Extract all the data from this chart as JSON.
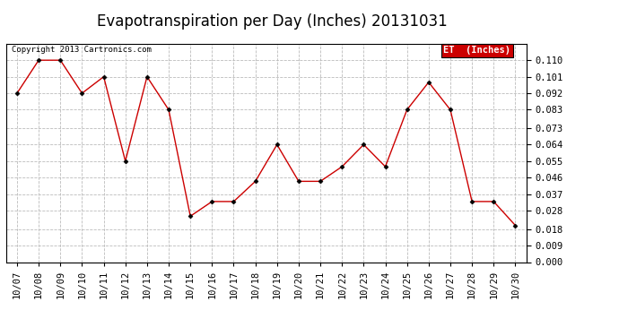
{
  "title": "Evapotranspiration per Day (Inches) 20131031",
  "copyright_text": "Copyright 2013 Cartronics.com",
  "legend_label": "ET  (Inches)",
  "legend_bg": "#cc0000",
  "legend_fg": "#ffffff",
  "x_labels": [
    "10/07",
    "10/08",
    "10/09",
    "10/10",
    "10/11",
    "10/12",
    "10/13",
    "10/14",
    "10/15",
    "10/16",
    "10/17",
    "10/18",
    "10/19",
    "10/20",
    "10/21",
    "10/22",
    "10/23",
    "10/24",
    "10/25",
    "10/26",
    "10/27",
    "10/28",
    "10/29",
    "10/30"
  ],
  "y_values": [
    0.092,
    0.11,
    0.11,
    0.092,
    0.101,
    0.055,
    0.101,
    0.083,
    0.025,
    0.033,
    0.033,
    0.044,
    0.064,
    0.044,
    0.044,
    0.052,
    0.064,
    0.052,
    0.083,
    0.098,
    0.083,
    0.033,
    0.033,
    0.02
  ],
  "line_color": "#cc0000",
  "marker": "D",
  "marker_size": 2.5,
  "ylim": [
    0.0,
    0.119
  ],
  "yticks": [
    0.0,
    0.009,
    0.018,
    0.028,
    0.037,
    0.046,
    0.055,
    0.064,
    0.073,
    0.083,
    0.092,
    0.101,
    0.11
  ],
  "bg_color": "#ffffff",
  "grid_color": "#bbbbbb",
  "title_fontsize": 12,
  "tick_fontsize": 7.5,
  "copyright_fontsize": 6.5
}
